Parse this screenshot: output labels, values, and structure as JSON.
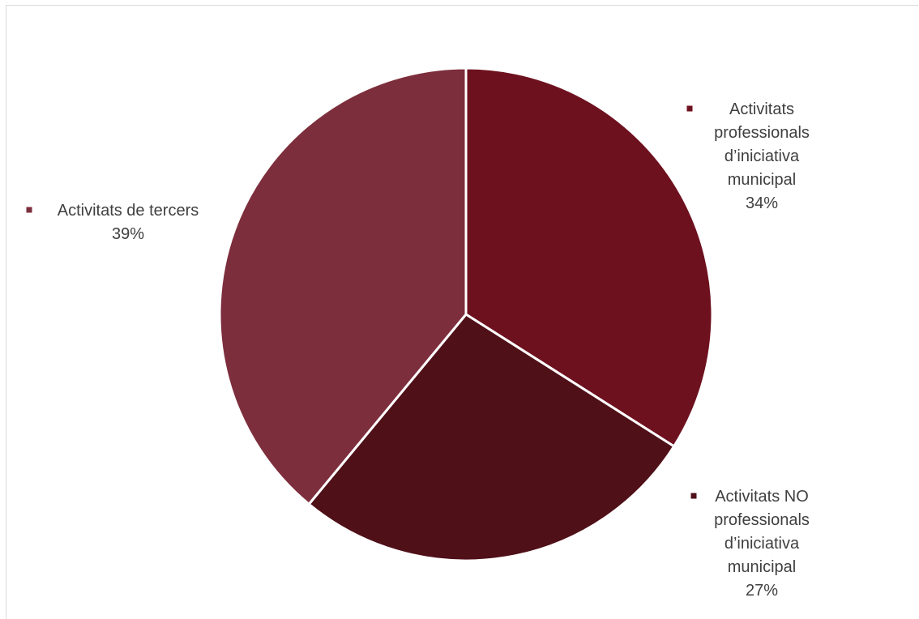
{
  "chart_data": {
    "type": "pie",
    "title": "",
    "slices": [
      {
        "name": "Activitats professionals d’iniciativa municipal",
        "label_lines": [
          "Activitats",
          "professionals",
          "d’iniciativa",
          "municipal"
        ],
        "value": 34,
        "value_label": "34%",
        "color": "#6e111f"
      },
      {
        "name": "Activitats NO professionals d’iniciativa municipal",
        "label_lines": [
          "Activitats NO",
          "professionals",
          "d’iniciativa",
          "municipal"
        ],
        "value": 27,
        "value_label": "27%",
        "color": "#4f1018"
      },
      {
        "name": "Activitats de tercers",
        "label_lines": [
          "Activitats de tercers"
        ],
        "value": 39,
        "value_label": "39%",
        "color": "#7d2e3c"
      }
    ],
    "start_angle": "12 o'clock",
    "direction": "clockwise",
    "slice_border_color": "#ffffff",
    "label_color": "#404040"
  }
}
